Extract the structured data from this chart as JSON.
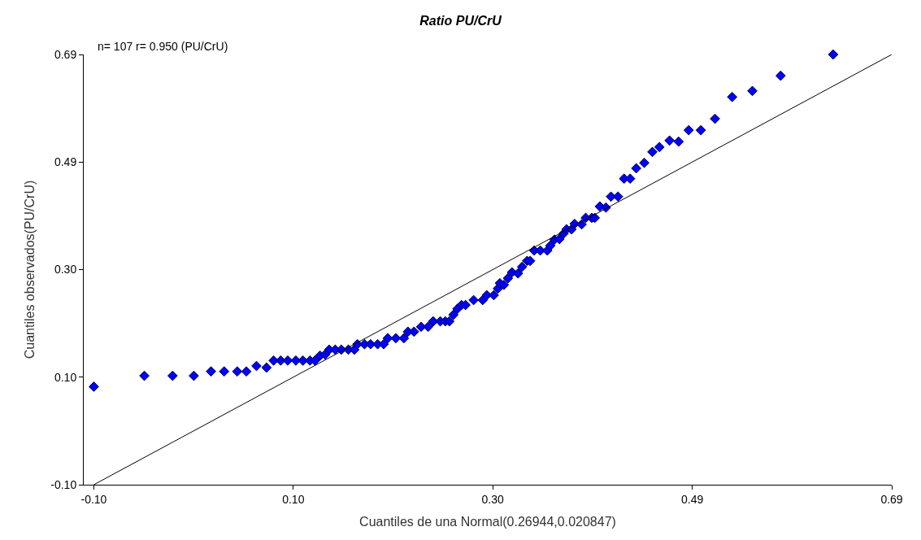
{
  "chart_data": {
    "type": "scatter",
    "title": "Ratio PU/CrU",
    "xlabel": "Cuantiles de una Normal(0.26944,0.020847)",
    "ylabel": "Cuantiles observados(PU/CrU)",
    "annotations": [
      "n= 107 r= 0.950 (PU/CrU)"
    ],
    "xlim": [
      -0.11,
      0.69
    ],
    "ylim": [
      -0.1,
      0.69
    ],
    "xticks": [
      {
        "value": -0.1,
        "label": "-0.10"
      },
      {
        "value": 0.0975,
        "label": "0.10"
      },
      {
        "value": 0.295,
        "label": "0.30"
      },
      {
        "value": 0.4925,
        "label": "0.49"
      },
      {
        "value": 0.69,
        "label": "0.69"
      }
    ],
    "yticks": [
      {
        "value": -0.1,
        "label": "-0.10"
      },
      {
        "value": 0.0975,
        "label": "0.10"
      },
      {
        "value": 0.295,
        "label": "0.30"
      },
      {
        "value": 0.4925,
        "label": "0.49"
      },
      {
        "value": 0.69,
        "label": "0.69"
      }
    ],
    "marker": "diamond",
    "series": [
      {
        "color": "#0000ff",
        "x": [
          -0.1,
          -0.05,
          -0.022,
          -0.001,
          0.016,
          0.029,
          0.042,
          0.051,
          0.061,
          0.071,
          0.078,
          0.085,
          0.092,
          0.1,
          0.107,
          0.114,
          0.119,
          0.124,
          0.129,
          0.133,
          0.139,
          0.145,
          0.152,
          0.158,
          0.161,
          0.168,
          0.174,
          0.181,
          0.187,
          0.191,
          0.199,
          0.207,
          0.211,
          0.217,
          0.224,
          0.231,
          0.236,
          0.243,
          0.248,
          0.252,
          0.256,
          0.26,
          0.264,
          0.268,
          0.276,
          0.285,
          0.289,
          0.296,
          0.3,
          0.302,
          0.306,
          0.31,
          0.314,
          0.32,
          0.324,
          0.329,
          0.332,
          0.336,
          0.342,
          0.349,
          0.352,
          0.356,
          0.361,
          0.365,
          0.368,
          0.373,
          0.376,
          0.383,
          0.387,
          0.393,
          0.396,
          0.401,
          0.407,
          0.412,
          0.419,
          0.425,
          0.431,
          0.437,
          0.445,
          0.453,
          0.46,
          0.47,
          0.479,
          0.489,
          0.501,
          0.515,
          0.532,
          0.552,
          0.58,
          0.632
        ],
        "values": [
          0.08,
          0.1,
          0.1,
          0.1,
          0.108,
          0.108,
          0.108,
          0.108,
          0.118,
          0.115,
          0.128,
          0.128,
          0.128,
          0.128,
          0.128,
          0.128,
          0.128,
          0.137,
          0.139,
          0.148,
          0.148,
          0.148,
          0.148,
          0.148,
          0.158,
          0.158,
          0.158,
          0.158,
          0.158,
          0.169,
          0.169,
          0.169,
          0.181,
          0.181,
          0.19,
          0.19,
          0.2,
          0.2,
          0.2,
          0.2,
          0.212,
          0.223,
          0.23,
          0.23,
          0.239,
          0.239,
          0.248,
          0.248,
          0.26,
          0.27,
          0.267,
          0.279,
          0.29,
          0.288,
          0.3,
          0.311,
          0.311,
          0.33,
          0.33,
          0.33,
          0.339,
          0.35,
          0.351,
          0.361,
          0.369,
          0.369,
          0.379,
          0.378,
          0.39,
          0.39,
          0.39,
          0.411,
          0.409,
          0.429,
          0.429,
          0.462,
          0.462,
          0.481,
          0.491,
          0.511,
          0.52,
          0.532,
          0.53,
          0.551,
          0.551,
          0.572,
          0.612,
          0.623,
          0.651,
          0.69
        ]
      },
      {
        "type": "line",
        "color": "#000000",
        "x": [
          -0.1,
          0.69
        ],
        "values": [
          -0.1,
          0.69
        ],
        "marker": "none"
      }
    ]
  }
}
